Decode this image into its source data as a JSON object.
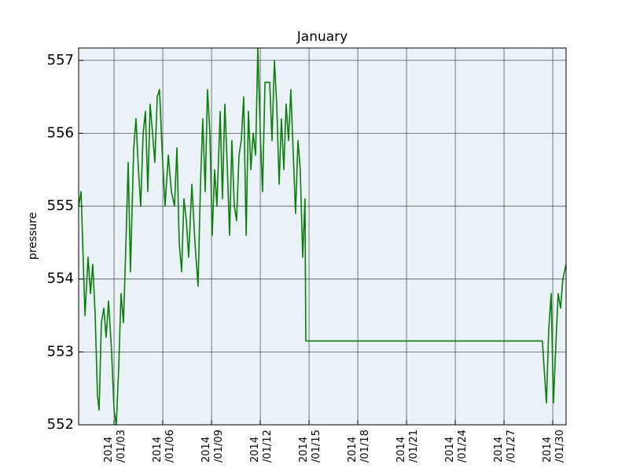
{
  "chart_data": {
    "type": "line",
    "title": "January",
    "y_label": "pressure",
    "x": [
      0.82,
      0.97,
      1.21,
      1.4,
      1.55,
      1.69,
      1.84,
      1.98,
      2.08,
      2.22,
      2.37,
      2.51,
      2.66,
      2.85,
      3.0,
      3.14,
      3.29,
      3.43,
      3.58,
      3.72,
      3.87,
      4.01,
      4.21,
      4.35,
      4.5,
      4.64,
      4.79,
      4.93,
      5.08,
      5.22,
      5.37,
      5.51,
      5.66,
      5.8,
      5.95,
      6.14,
      6.34,
      6.53,
      6.72,
      6.87,
      7.01,
      7.16,
      7.3,
      7.45,
      7.59,
      7.79,
      7.98,
      8.17,
      8.32,
      8.46,
      8.61,
      8.75,
      8.9,
      9.04,
      9.19,
      9.33,
      9.53,
      9.67,
      9.82,
      9.96,
      10.11,
      10.25,
      10.4,
      10.54,
      10.69,
      10.83,
      10.98,
      11.13,
      11.27,
      11.42,
      11.56,
      11.71,
      11.85,
      12.0,
      12.14,
      12.29,
      12.43,
      12.58,
      12.72,
      12.87,
      13.01,
      13.16,
      13.3,
      13.45,
      13.59,
      13.74,
      13.88,
      14.03,
      14.17,
      14.32,
      14.46,
      14.61,
      14.75,
      14.8,
      29.36,
      29.46,
      29.61,
      29.75,
      29.9,
      30.04,
      30.19,
      30.33,
      30.48,
      30.62,
      30.82
    ],
    "series": [
      {
        "name": "pressure",
        "color": "#0a7d0a",
        "values": [
          555.0,
          555.2,
          553.5,
          554.3,
          553.8,
          554.2,
          553.5,
          552.4,
          552.2,
          553.4,
          553.6,
          553.2,
          553.7,
          553.0,
          552.2,
          552.0,
          552.8,
          553.8,
          553.4,
          554.4,
          555.6,
          554.1,
          555.8,
          556.2,
          555.5,
          555.0,
          556.0,
          556.3,
          555.2,
          556.4,
          556.0,
          555.6,
          556.5,
          556.6,
          555.8,
          555.0,
          555.7,
          555.2,
          555.0,
          555.8,
          554.5,
          554.1,
          555.1,
          554.8,
          554.3,
          555.3,
          554.5,
          553.9,
          555.3,
          556.2,
          555.2,
          556.6,
          556.0,
          554.6,
          555.5,
          555.0,
          556.3,
          555.1,
          556.4,
          555.6,
          554.6,
          555.9,
          555.0,
          554.8,
          555.7,
          555.9,
          556.5,
          554.6,
          556.3,
          555.5,
          556.0,
          555.7,
          557.17,
          556.0,
          555.2,
          556.7,
          556.7,
          556.7,
          555.9,
          557.0,
          556.4,
          555.3,
          556.2,
          555.5,
          556.4,
          555.9,
          556.6,
          555.7,
          554.9,
          555.9,
          555.5,
          554.3,
          555.1,
          553.15,
          553.15,
          552.8,
          552.3,
          553.3,
          553.8,
          552.3,
          553.1,
          553.8,
          553.6,
          554.0,
          554.2
        ]
      }
    ],
    "xlim": [
      0.82,
      30.82
    ],
    "ylim": [
      552,
      557.17
    ],
    "xticks": [
      {
        "value": 3,
        "label": [
          "2014",
          "/01/03"
        ]
      },
      {
        "value": 6,
        "label": [
          "2014",
          "/01/06"
        ]
      },
      {
        "value": 9,
        "label": [
          "2014",
          "/01/09"
        ]
      },
      {
        "value": 12,
        "label": [
          "2014",
          "/01/12"
        ]
      },
      {
        "value": 15,
        "label": [
          "2014",
          "/01/15"
        ]
      },
      {
        "value": 18,
        "label": [
          "2014",
          "/01/18"
        ]
      },
      {
        "value": 21,
        "label": [
          "2014",
          "/01/21"
        ]
      },
      {
        "value": 24,
        "label": [
          "2014",
          "/01/24"
        ]
      },
      {
        "value": 27,
        "label": [
          "2014",
          "/01/27"
        ]
      },
      {
        "value": 30,
        "label": [
          "2014",
          "/01/30"
        ]
      }
    ],
    "yticks": [
      552,
      553,
      554,
      555,
      556,
      557
    ],
    "grid": true,
    "background": "#eaf2f8"
  }
}
